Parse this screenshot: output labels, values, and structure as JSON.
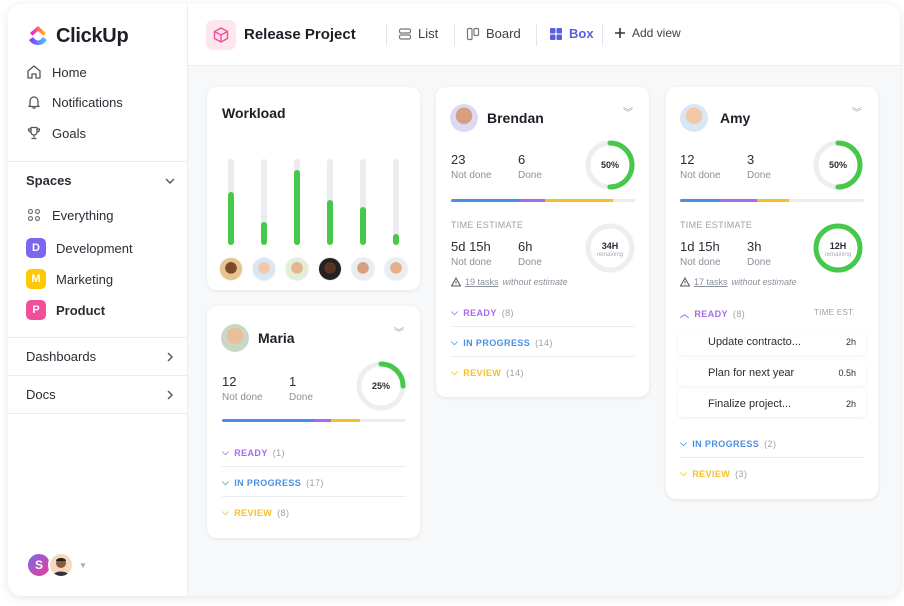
{
  "brand": {
    "name": "ClickUp"
  },
  "sidebar": {
    "nav": [
      {
        "label": "Home",
        "icon": "home-icon"
      },
      {
        "label": "Notifications",
        "icon": "bell-icon"
      },
      {
        "label": "Goals",
        "icon": "trophy-icon"
      }
    ],
    "spaces_label": "Spaces",
    "everything_label": "Everything",
    "spaces": [
      {
        "letter": "D",
        "label": "Development",
        "color": "#7b68ee"
      },
      {
        "letter": "M",
        "label": "Marketing",
        "color": "#ffc800"
      },
      {
        "letter": "P",
        "label": "Product",
        "color": "#f24e9a"
      }
    ],
    "dashboards_label": "Dashboards",
    "docs_label": "Docs",
    "user_initial": "S"
  },
  "topbar": {
    "project_title": "Release Project",
    "views": [
      {
        "label": "List",
        "icon": "list-icon"
      },
      {
        "label": "Board",
        "icon": "board-icon"
      },
      {
        "label": "Box",
        "icon": "box-icon",
        "active": true
      }
    ],
    "add_view_label": "Add view"
  },
  "workload": {
    "title": "Workload",
    "bars": [
      0.62,
      0.27,
      0.87,
      0.52,
      0.44,
      0.13
    ],
    "accent": "#46c84a"
  },
  "people": {
    "brendan": {
      "name": "Brendan",
      "not_done": "23",
      "not_done_label": "Not done",
      "done": "6",
      "done_label": "Done",
      "percent_label": "50%",
      "percent": 0.5,
      "time_estimate_label": "TIME ESTIMATE",
      "time_not_done": "5d 15h",
      "time_done": "6h",
      "remaining_label": "34H",
      "remaining_sub": "remaining",
      "warning_count": "19 tasks",
      "warning_rest": "without estimate",
      "statuses": [
        {
          "label": "READY",
          "count": "(8)",
          "color": "#a86ae8"
        },
        {
          "label": "IN PROGRESS",
          "count": "(14)",
          "color": "#4a90e2"
        },
        {
          "label": "REVIEW",
          "count": "(14)",
          "color": "#f5c026"
        }
      ]
    },
    "amy": {
      "name": "Amy",
      "not_done": "12",
      "not_done_label": "Not done",
      "done": "3",
      "done_label": "Done",
      "percent_label": "50%",
      "percent": 0.5,
      "time_estimate_label": "TIME ESTIMATE",
      "time_not_done": "1d 15h",
      "time_done": "3h",
      "remaining_label": "12H",
      "remaining_sub": "remaining",
      "warning_count": "17 tasks",
      "warning_rest": "without estimate",
      "ready_label": "READY",
      "ready_count": "(8)",
      "time_est_col": "TIME EST.",
      "tasks": [
        {
          "name": "Update contracto...",
          "est": "2h"
        },
        {
          "name": "Plan for next year",
          "est": "0.5h"
        },
        {
          "name": "Finalize project...",
          "est": "2h"
        }
      ],
      "in_progress_label": "IN PROGRESS",
      "in_progress_count": "(2)",
      "review_label": "REVIEW",
      "review_count": "(3)"
    },
    "maria": {
      "name": "Maria",
      "not_done": "12",
      "not_done_label": "Not done",
      "done": "1",
      "done_label": "Done",
      "percent_label": "25%",
      "percent": 0.25,
      "statuses": [
        {
          "label": "READY",
          "count": "(1)",
          "color": "#a86ae8"
        },
        {
          "label": "IN PROGRESS",
          "count": "(17)",
          "color": "#4a90e2"
        },
        {
          "label": "REVIEW",
          "count": "(8)",
          "color": "#f5c026"
        }
      ]
    }
  }
}
